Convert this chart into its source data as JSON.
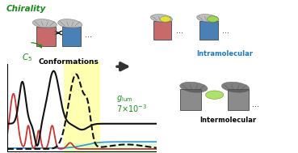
{
  "bg_color": "#ffffff",
  "chirality_text": "Chirality",
  "chirality_color": "#1a8a1a",
  "c5_color": "#1a8a1a",
  "conformations_text": "Conformations",
  "conformations_color": "#000000",
  "intramolecular_text": "Intramolecular",
  "intramolecular_color": "#1a7abf",
  "intermolecular_text": "Intermolecular",
  "intermolecular_color": "#000000",
  "glum_color": "#1a8a1a",
  "yellow_fill": "#ffff88",
  "green_fill": "#ccffcc",
  "red_box_color": "#c05050",
  "blue_box_color": "#2a6aaa",
  "gray_box_color": "#777777",
  "green_blob_color": "#99dd44",
  "yellow_blob_color": "#eeee22",
  "curves": {
    "black_solid": {
      "color": "#111111",
      "lw": 1.5,
      "style": "-"
    },
    "red_solid": {
      "color": "#cc3333",
      "lw": 1.3,
      "style": "-"
    },
    "blue_solid": {
      "color": "#4499cc",
      "lw": 1.3,
      "style": "-"
    },
    "black_dashed": {
      "color": "#111111",
      "lw": 1.5,
      "style": "--"
    }
  },
  "figsize": [
    3.69,
    1.89
  ],
  "dpi": 100
}
